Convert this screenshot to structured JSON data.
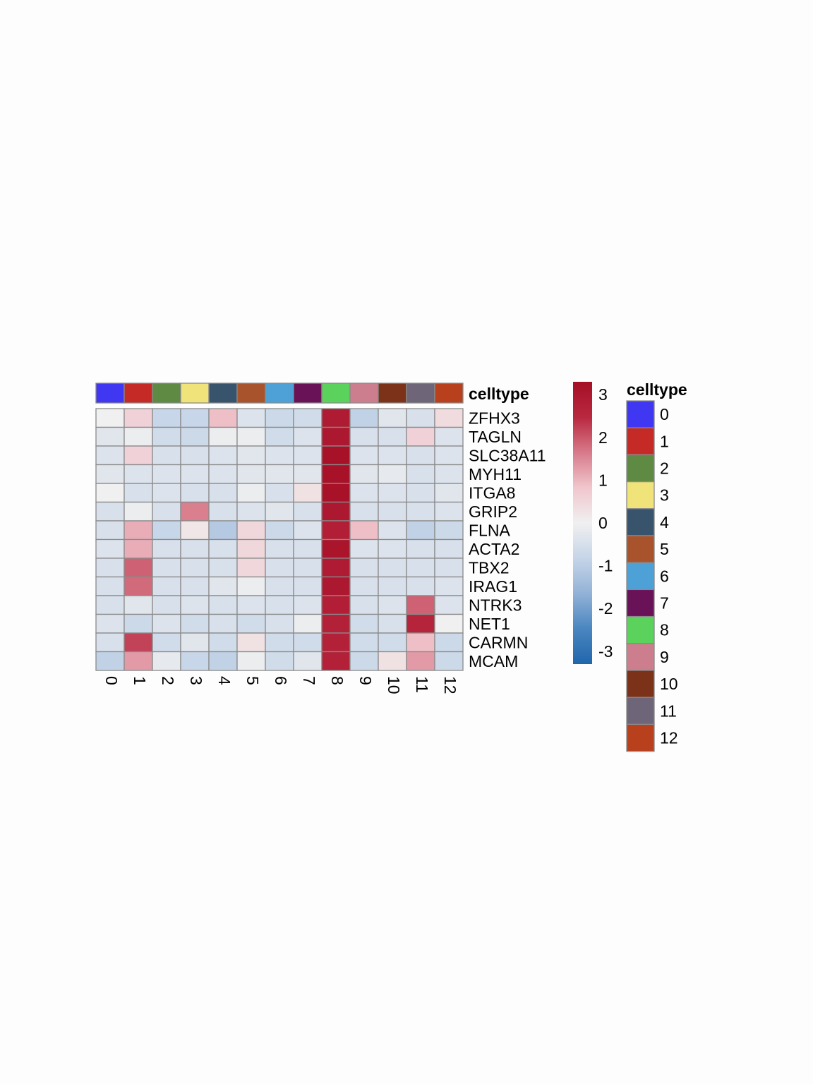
{
  "chart_data": {
    "type": "heatmap",
    "annotation_label": "celltype",
    "legend_title": "celltype",
    "columns": [
      "0",
      "1",
      "2",
      "3",
      "4",
      "5",
      "6",
      "7",
      "8",
      "9",
      "10",
      "11",
      "12"
    ],
    "rows": [
      "ZFHX3",
      "TAGLN",
      "SLC38A11",
      "MYH11",
      "ITGA8",
      "GRIP2",
      "FLNA",
      "ACTA2",
      "TBX2",
      "IRAG1",
      "NTRK3",
      "NET1",
      "CARMN",
      "MCAM"
    ],
    "values": [
      [
        0.0,
        0.6,
        -0.8,
        -0.8,
        0.9,
        -0.4,
        -0.7,
        -0.6,
        2.9,
        -0.9,
        -0.3,
        -0.5,
        0.4
      ],
      [
        -0.3,
        -0.1,
        -0.6,
        -0.7,
        -0.1,
        -0.1,
        -0.6,
        -0.4,
        3.0,
        -0.5,
        -0.5,
        0.6,
        -0.4
      ],
      [
        -0.4,
        0.6,
        -0.5,
        -0.5,
        -0.4,
        -0.3,
        -0.4,
        -0.4,
        3.2,
        -0.4,
        -0.4,
        -0.5,
        -0.4
      ],
      [
        -0.3,
        -0.4,
        -0.4,
        -0.4,
        -0.4,
        -0.3,
        -0.3,
        -0.3,
        3.2,
        -0.3,
        -0.2,
        -0.5,
        -0.4
      ],
      [
        0.0,
        -0.5,
        -0.4,
        -0.5,
        -0.5,
        -0.1,
        -0.5,
        0.3,
        3.2,
        -0.4,
        -0.4,
        -0.5,
        -0.3
      ],
      [
        -0.5,
        -0.1,
        -0.5,
        1.6,
        -0.5,
        -0.4,
        -0.3,
        -0.5,
        3.0,
        -0.5,
        -0.5,
        -0.5,
        -0.4
      ],
      [
        -0.5,
        1.1,
        -0.8,
        0.2,
        -1.1,
        0.5,
        -0.7,
        -0.4,
        2.8,
        0.9,
        -0.4,
        -0.9,
        -0.7
      ],
      [
        -0.4,
        1.1,
        -0.5,
        -0.5,
        -0.5,
        0.5,
        -0.5,
        -0.5,
        3.1,
        -0.4,
        -0.4,
        -0.5,
        -0.5
      ],
      [
        -0.5,
        1.9,
        -0.5,
        -0.5,
        -0.5,
        0.5,
        -0.5,
        -0.5,
        2.9,
        -0.5,
        -0.5,
        -0.5,
        -0.5
      ],
      [
        -0.5,
        1.8,
        -0.5,
        -0.5,
        -0.3,
        -0.1,
        -0.5,
        -0.5,
        3.0,
        -0.5,
        -0.5,
        -0.5,
        -0.4
      ],
      [
        -0.5,
        -0.3,
        -0.5,
        -0.4,
        -0.5,
        -0.4,
        -0.5,
        -0.4,
        2.8,
        -0.5,
        -0.4,
        1.9,
        -0.4
      ],
      [
        -0.4,
        -0.7,
        -0.4,
        -0.6,
        -0.5,
        -0.6,
        -0.5,
        -0.1,
        2.7,
        -0.6,
        -0.5,
        2.6,
        0.0
      ],
      [
        -0.5,
        2.2,
        -0.6,
        -0.3,
        -0.6,
        0.3,
        -0.6,
        -0.6,
        2.7,
        -0.6,
        -0.6,
        0.9,
        -0.7
      ],
      [
        -0.9,
        1.3,
        -0.2,
        -0.8,
        -0.9,
        -0.1,
        -0.6,
        -0.3,
        2.7,
        -0.7,
        0.3,
        1.3,
        -0.7
      ]
    ],
    "celltype_colors": [
      "#4037f2",
      "#c52a26",
      "#5f8a44",
      "#efe37a",
      "#38546d",
      "#a9532d",
      "#4da1d7",
      "#6a1257",
      "#5ad25b",
      "#cd7e8e",
      "#7b3219",
      "#6f6579",
      "#b8401d"
    ],
    "colorbar": {
      "min": -3.3,
      "max": 3.3,
      "ticks": [
        3,
        2,
        1,
        0,
        -1,
        -2,
        -3
      ],
      "tick_labels": [
        "3",
        "2",
        "1",
        "0",
        "-1",
        "-2",
        "-3"
      ],
      "colors": [
        "#2166ac",
        "#4a86c0",
        "#92b2d6",
        "#c6d5e8",
        "#f0f0f0",
        "#f0c6cd",
        "#d77a8a",
        "#b8283f",
        "#a50f26"
      ]
    }
  }
}
